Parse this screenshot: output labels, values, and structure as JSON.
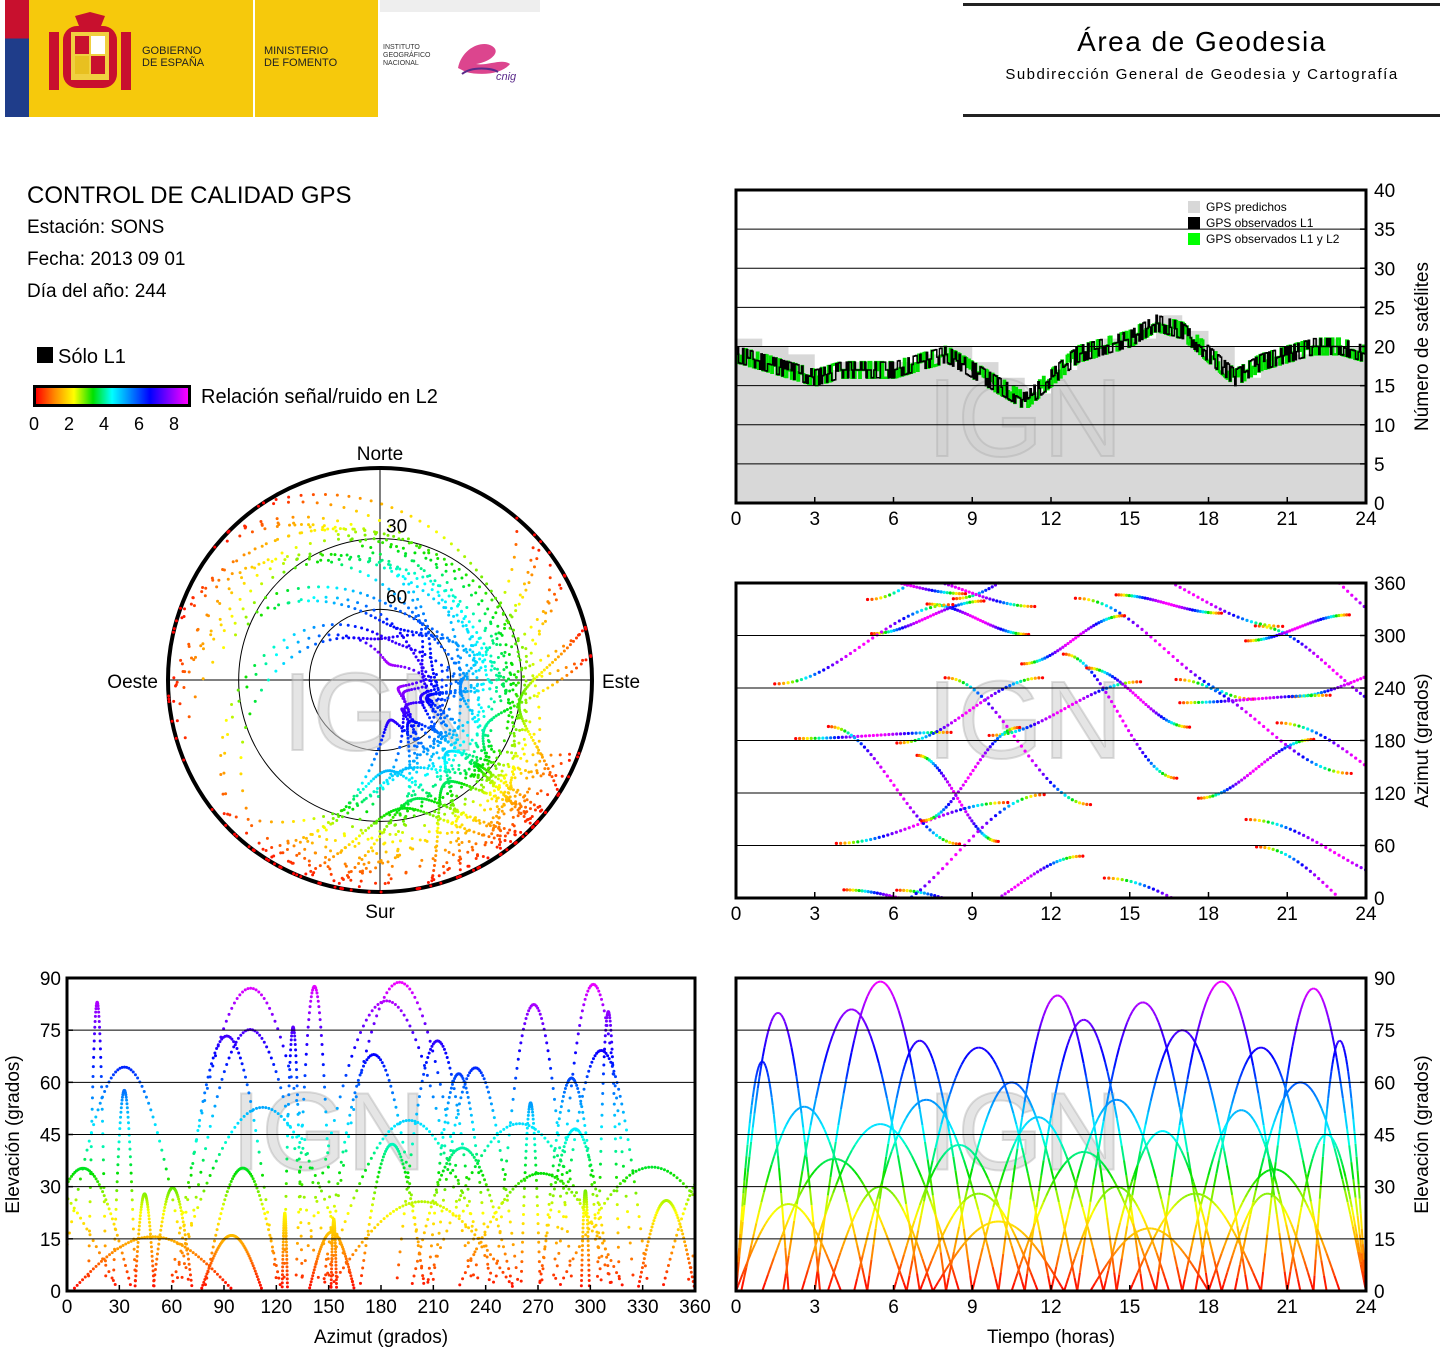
{
  "header": {
    "gobierno": [
      "GOBIERNO",
      "DE ESPAÑA"
    ],
    "ministerio": [
      "MINISTERIO",
      "DE FOMENTO"
    ],
    "ign": [
      "INSTITUTO",
      "GEOGRÁFICO",
      "NACIONAL"
    ],
    "cnig": "cnig",
    "area_title": "Área de Geodesia",
    "area_subtitle": "Subdirección General de Geodesia y Cartografía",
    "brand_colors": {
      "yellow": "#f6c90c",
      "red": "#c8102e",
      "blue": "#1f3d8a",
      "magenta": "#d6247a"
    }
  },
  "info": {
    "title": "CONTROL DE CALIDAD GPS",
    "station": "Estación: SONS",
    "date": "Fecha: 2013 09 01",
    "doy": "Día del año: 244"
  },
  "legend": {
    "l1_only": "Sólo L1",
    "snr_label": "Relación señal/ruido en L2",
    "snr_ticks": [
      "0",
      "2",
      "4",
      "6",
      "8"
    ],
    "colors": [
      "#ff0000",
      "#ff8c00",
      "#ffff00",
      "#00e000",
      "#00ffff",
      "#0080ff",
      "#0000ff",
      "#8000ff",
      "#ff00ff"
    ]
  },
  "watermark": "IGN",
  "chart_data": [
    {
      "type": "area",
      "id": "satellites",
      "ylabel": "Número de satélites",
      "xlim": [
        0,
        24
      ],
      "ylim": [
        0,
        40
      ],
      "xticks": [
        "0",
        "3",
        "6",
        "9",
        "12",
        "15",
        "18",
        "21",
        "24"
      ],
      "yticks": [
        "0",
        "5",
        "10",
        "15",
        "20",
        "25",
        "30",
        "35",
        "40"
      ],
      "legend": [
        "GPS predichos",
        "GPS observados L1",
        "GPS observados L1 y L2"
      ],
      "legend_position": "top-right",
      "grid": true,
      "x": [
        0,
        1,
        2,
        3,
        4,
        5,
        6,
        7,
        8,
        9,
        10,
        11,
        12,
        13,
        14,
        15,
        16,
        17,
        18,
        19,
        20,
        21,
        22,
        23,
        24
      ],
      "series": [
        {
          "name": "GPS predichos",
          "values": [
            21,
            20,
            19,
            17,
            18,
            18,
            18,
            19,
            20,
            18,
            16,
            14,
            17,
            20,
            21,
            21,
            24,
            22,
            20,
            16,
            18,
            19,
            21,
            20,
            20
          ]
        },
        {
          "name": "GPS observados L1",
          "values": [
            19,
            18,
            17,
            16,
            17,
            17,
            17,
            18,
            19,
            17,
            15,
            13,
            16,
            19,
            20,
            21,
            23,
            22,
            19,
            16,
            18,
            19,
            20,
            20,
            19
          ]
        },
        {
          "name": "GPS observados L1 y L2",
          "values": [
            19,
            18,
            17,
            16,
            17,
            17,
            17,
            18,
            19,
            17,
            15,
            13,
            16,
            19,
            20,
            21,
            23,
            22,
            19,
            16,
            18,
            19,
            20,
            20,
            19
          ]
        }
      ]
    },
    {
      "type": "scatter",
      "id": "azimuth",
      "ylabel": "Azimut (grados)",
      "xlim": [
        0,
        24
      ],
      "ylim": [
        0,
        360
      ],
      "xticks": [
        "0",
        "3",
        "6",
        "9",
        "12",
        "15",
        "18",
        "21",
        "24"
      ],
      "yticks": [
        "0",
        "60",
        "120",
        "180",
        "240",
        "300",
        "360"
      ],
      "grid": true
    },
    {
      "type": "scatter",
      "id": "skyplot",
      "labels": {
        "north": "Norte",
        "south": "Sur",
        "west": "Oeste",
        "east": "Este"
      },
      "rings": [
        "30",
        "60"
      ]
    },
    {
      "type": "scatter",
      "id": "elev_azimuth",
      "xlabel": "Azimut (grados)",
      "ylabel": "Elevación (grados)",
      "xlim": [
        0,
        360
      ],
      "ylim": [
        0,
        90
      ],
      "xticks": [
        "0",
        "30",
        "60",
        "90",
        "120",
        "150",
        "180",
        "210",
        "240",
        "270",
        "300",
        "330",
        "360"
      ],
      "yticks": [
        "0",
        "15",
        "30",
        "45",
        "60",
        "75",
        "90"
      ],
      "grid": true
    },
    {
      "type": "line",
      "id": "elev_time",
      "xlabel": "Tiempo (horas)",
      "ylabel": "Elevación (grados)",
      "xlim": [
        0,
        24
      ],
      "ylim": [
        0,
        90
      ],
      "xticks": [
        "0",
        "3",
        "6",
        "9",
        "12",
        "15",
        "18",
        "21",
        "24"
      ],
      "yticks": [
        "0",
        "15",
        "30",
        "45",
        "60",
        "75",
        "90"
      ],
      "grid": true,
      "passes": [
        {
          "rise": 0.0,
          "set": 3.2,
          "peak": 80
        },
        {
          "rise": 0.2,
          "set": 5.0,
          "peak": 53
        },
        {
          "rise": 0.0,
          "set": 2.0,
          "peak": 66
        },
        {
          "rise": 1.0,
          "set": 6.5,
          "peak": 38
        },
        {
          "rise": 1.8,
          "set": 7.0,
          "peak": 81
        },
        {
          "rise": 2.5,
          "set": 8.5,
          "peak": 48
        },
        {
          "rise": 3.5,
          "set": 7.5,
          "peak": 30
        },
        {
          "rise": 3.0,
          "set": 8.0,
          "peak": 89
        },
        {
          "rise": 4.5,
          "set": 10.0,
          "peak": 55
        },
        {
          "rise": 5.0,
          "set": 9.0,
          "peak": 72
        },
        {
          "rise": 6.0,
          "set": 11.0,
          "peak": 42
        },
        {
          "rise": 6.5,
          "set": 12.0,
          "peak": 70
        },
        {
          "rise": 7.0,
          "set": 11.5,
          "peak": 28
        },
        {
          "rise": 8.0,
          "set": 13.0,
          "peak": 60
        },
        {
          "rise": 9.0,
          "set": 14.0,
          "peak": 50
        },
        {
          "rise": 10.0,
          "set": 14.5,
          "peak": 85
        },
        {
          "rise": 10.5,
          "set": 16.0,
          "peak": 40
        },
        {
          "rise": 11.0,
          "set": 15.5,
          "peak": 78
        },
        {
          "rise": 12.0,
          "set": 17.0,
          "peak": 55
        },
        {
          "rise": 12.5,
          "set": 16.5,
          "peak": 30
        },
        {
          "rise": 13.0,
          "set": 18.0,
          "peak": 83
        },
        {
          "rise": 14.0,
          "set": 18.5,
          "peak": 46
        },
        {
          "rise": 14.5,
          "set": 19.5,
          "peak": 75
        },
        {
          "rise": 15.0,
          "set": 20.0,
          "peak": 28
        },
        {
          "rise": 16.0,
          "set": 21.0,
          "peak": 89
        },
        {
          "rise": 17.0,
          "set": 21.5,
          "peak": 52
        },
        {
          "rise": 17.5,
          "set": 22.5,
          "peak": 70
        },
        {
          "rise": 18.0,
          "set": 23.0,
          "peak": 35
        },
        {
          "rise": 19.0,
          "set": 24.0,
          "peak": 60
        },
        {
          "rise": 20.0,
          "set": 24.0,
          "peak": 87
        },
        {
          "rise": 21.0,
          "set": 24.0,
          "peak": 45
        },
        {
          "rise": 22.0,
          "set": 24.0,
          "peak": 72
        },
        {
          "rise": 0.0,
          "set": 4.0,
          "peak": 25
        },
        {
          "rise": 7.5,
          "set": 12.5,
          "peak": 20
        },
        {
          "rise": 13.5,
          "set": 18.0,
          "peak": 18
        },
        {
          "rise": 18.5,
          "set": 22.0,
          "peak": 28
        }
      ]
    }
  ]
}
